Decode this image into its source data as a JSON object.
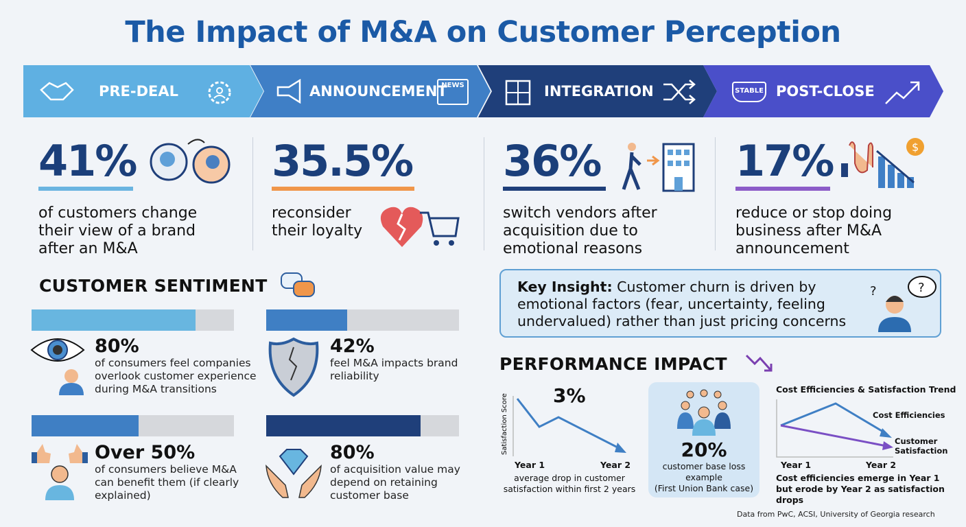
{
  "title": "The Impact of M&A on Customer Perception",
  "stages": [
    {
      "label": "PRE-DEAL",
      "color": "#5fb0e2",
      "icons": [
        "handshake-icon",
        "gear-person-icon"
      ]
    },
    {
      "label": "ANNOUNCEMENT",
      "color": "#3f7fc6",
      "icons": [
        "megaphone-icon",
        "newspaper-icon"
      ],
      "news_text": "NEWS"
    },
    {
      "label": "INTEGRATION",
      "color": "#1f3f7a",
      "icons": [
        "puzzle-icon",
        "shuffle-icon"
      ]
    },
    {
      "label": "POST-CLOSE",
      "color": "#4a4fc9",
      "icons": [
        "stable-shield-icon",
        "trend-up-icon"
      ],
      "badge_text": "STABLE"
    }
  ],
  "stats": [
    {
      "value": "41%",
      "desc": "of customers change their view of a brand after an M&A",
      "accent": "#6ab4e0",
      "icon": "heads-change-icon"
    },
    {
      "value": "35.5%",
      "desc": "reconsider their loyalty",
      "accent": "#f0964a",
      "icon": "broken-heart-cart-icon"
    },
    {
      "value": "36%",
      "desc": "switch vendors after acquisition due to emotional reasons",
      "accent": "#1f3f7a",
      "icon": "walk-to-building-icon"
    },
    {
      "value": "17%",
      "desc": "reduce or stop doing business after M&A announcement",
      "accent": "#8c5cc8",
      "icon": "stop-hand-declining-chart-icon"
    }
  ],
  "sentiment": {
    "heading": "CUSTOMER SENTIMENT",
    "items": [
      {
        "value": "80%",
        "desc": "of consumers feel companies overlook customer experience during M&A transitions",
        "fill": 0.81,
        "color": "#68b6e0",
        "icon": "eye-person-icon"
      },
      {
        "value": "42%",
        "desc": "feel M&A impacts brand reliability",
        "fill": 0.42,
        "color": "#3f7fc4",
        "icon": "cracked-shield-icon"
      },
      {
        "value": "Over 50%",
        "desc": "of consumers believe M&A can benefit them (if clearly explained)",
        "fill": 0.53,
        "color": "#3f7fc4",
        "icon": "thumbs-up-person-icon"
      },
      {
        "value": "80%",
        "desc": "of acquisition value may depend on retaining customer base",
        "fill": 0.8,
        "color": "#1f3f7a",
        "icon": "diamond-hands-icon"
      }
    ]
  },
  "insight": {
    "label": "Key Insight:",
    "text": " Customer churn is driven by emotional factors (fear, uncertainty, feeling undervalued) rather than just pricing concerns"
  },
  "performance": {
    "heading": "PERFORMANCE IMPACT",
    "drop": {
      "value": "3%",
      "ylabel": "Satisfaction Score",
      "x_labels": [
        "Year 1",
        "Year 2"
      ],
      "desc": "average drop in customer satisfaction within first 2 years"
    },
    "loss": {
      "value": "20%",
      "desc": "customer base loss example",
      "note": "(First Union Bank case)"
    },
    "trend": {
      "title": "Cost Efficiencies & Satisfaction Trend",
      "series": [
        "Cost Efficiencies",
        "Customer Satisfaction"
      ],
      "x_labels": [
        "Year 1",
        "Year 2"
      ],
      "desc": "Cost efficiencies emerge in Year 1 but erode by Year 2 as satisfaction drops"
    }
  },
  "source": "Data from PwC, ACSI, University of Georgia research"
}
